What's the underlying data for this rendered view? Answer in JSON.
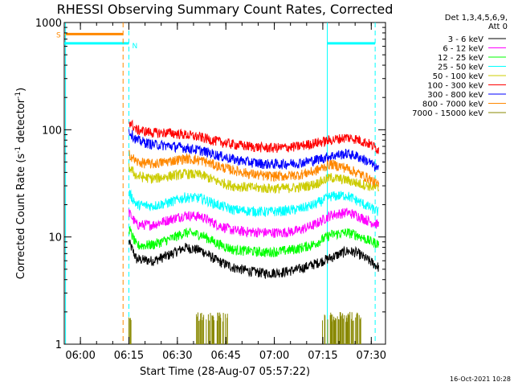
{
  "chart_data": {
    "type": "line",
    "title": "RHESSI Observing Summary Count Rates, Corrected",
    "xlabel": "Start Time (28-Aug-07 05:57:22)",
    "ylabel": "Corrected Count Rate (s",
    "ylabel_sup1": "-1",
    "ylabel_mid": " detector",
    "ylabel_sup2": "-1",
    "ylabel_end": ")",
    "y_scale": "log",
    "ylim": [
      1,
      1000
    ],
    "x_range_minutes": [
      -2.4,
      97.0
    ],
    "x_ticks": [
      {
        "label": "06:00",
        "minutes": 2.6
      },
      {
        "label": "06:15",
        "minutes": 17.6
      },
      {
        "label": "06:30",
        "minutes": 32.6
      },
      {
        "label": "06:45",
        "minutes": 47.6
      },
      {
        "label": "07:00",
        "minutes": 62.6
      },
      {
        "label": "07:15",
        "minutes": 77.6
      },
      {
        "label": "07:30",
        "minutes": 92.6
      }
    ],
    "y_ticks": [
      {
        "label": "1",
        "value": 1
      },
      {
        "label": "10",
        "value": 10
      },
      {
        "label": "100",
        "value": 100
      },
      {
        "label": "1000",
        "value": 1000
      }
    ],
    "legend_header": [
      "Det 1,3,4,5,6,9,",
      "Att 0"
    ],
    "legend_placement": "right",
    "series": [
      {
        "name": "3 - 6 keV",
        "color": "#000000",
        "points": [
          [
            17.6,
            9.0
          ],
          [
            20,
            6.2
          ],
          [
            25,
            6.0
          ],
          [
            30,
            6.8
          ],
          [
            35,
            8.0
          ],
          [
            40,
            7.5
          ],
          [
            45,
            6.0
          ],
          [
            50,
            5.2
          ],
          [
            55,
            4.8
          ],
          [
            60,
            4.6
          ],
          [
            65,
            4.7
          ],
          [
            70,
            5.0
          ],
          [
            75,
            5.6
          ],
          [
            80,
            6.4
          ],
          [
            85,
            7.4
          ],
          [
            88,
            7.2
          ],
          [
            92,
            6.0
          ],
          [
            95,
            5.2
          ]
        ]
      },
      {
        "name": "6 - 12 keV",
        "color": "#ff00ff",
        "points": [
          [
            17.6,
            17
          ],
          [
            20,
            13
          ],
          [
            25,
            13
          ],
          [
            30,
            14.5
          ],
          [
            35,
            16
          ],
          [
            40,
            15.5
          ],
          [
            45,
            13
          ],
          [
            50,
            11.5
          ],
          [
            55,
            11.2
          ],
          [
            60,
            11
          ],
          [
            65,
            11
          ],
          [
            70,
            11.5
          ],
          [
            75,
            13
          ],
          [
            80,
            16
          ],
          [
            85,
            17
          ],
          [
            88,
            16
          ],
          [
            92,
            14
          ],
          [
            95,
            13
          ]
        ]
      },
      {
        "name": "12 - 25 keV",
        "color": "#00ff00",
        "points": [
          [
            17.6,
            12
          ],
          [
            20,
            8.3
          ],
          [
            25,
            8.5
          ],
          [
            30,
            9.5
          ],
          [
            35,
            11
          ],
          [
            40,
            10.5
          ],
          [
            45,
            8.7
          ],
          [
            50,
            7.6
          ],
          [
            55,
            7.4
          ],
          [
            60,
            7.2
          ],
          [
            65,
            7.4
          ],
          [
            70,
            7.8
          ],
          [
            75,
            8.6
          ],
          [
            80,
            10.5
          ],
          [
            85,
            11
          ],
          [
            88,
            10.5
          ],
          [
            92,
            9.2
          ],
          [
            95,
            8.6
          ]
        ]
      },
      {
        "name": "25 - 50 keV",
        "color": "#00ffff",
        "points": [
          [
            17.6,
            26
          ],
          [
            20,
            20
          ],
          [
            25,
            19.5
          ],
          [
            30,
            21
          ],
          [
            35,
            23.5
          ],
          [
            40,
            23
          ],
          [
            45,
            20
          ],
          [
            50,
            18
          ],
          [
            55,
            17.5
          ],
          [
            60,
            17.2
          ],
          [
            65,
            17.5
          ],
          [
            70,
            18.2
          ],
          [
            75,
            20
          ],
          [
            80,
            24
          ],
          [
            85,
            24.5
          ],
          [
            88,
            22
          ],
          [
            92,
            19
          ],
          [
            95,
            17
          ]
        ]
      },
      {
        "name": "50 - 100 keV",
        "color": "#cccc00",
        "points": [
          [
            17.6,
            45
          ],
          [
            20,
            37
          ],
          [
            25,
            35
          ],
          [
            30,
            37
          ],
          [
            35,
            39
          ],
          [
            40,
            38
          ],
          [
            45,
            33
          ],
          [
            50,
            30
          ],
          [
            55,
            29
          ],
          [
            60,
            28.5
          ],
          [
            65,
            28.5
          ],
          [
            70,
            29
          ],
          [
            75,
            31
          ],
          [
            80,
            36
          ],
          [
            85,
            34
          ],
          [
            88,
            32
          ],
          [
            92,
            30
          ],
          [
            95,
            28
          ]
        ]
      },
      {
        "name": "100 - 300 keV",
        "color": "#ff0000",
        "points": [
          [
            17.6,
            120
          ],
          [
            20,
            100
          ],
          [
            25,
            94
          ],
          [
            30,
            94
          ],
          [
            35,
            90
          ],
          [
            40,
            85
          ],
          [
            45,
            78
          ],
          [
            50,
            73
          ],
          [
            55,
            70
          ],
          [
            60,
            68
          ],
          [
            65,
            68
          ],
          [
            70,
            70
          ],
          [
            75,
            75
          ],
          [
            80,
            80
          ],
          [
            85,
            85
          ],
          [
            88,
            82
          ],
          [
            92,
            74
          ],
          [
            95,
            65
          ]
        ]
      },
      {
        "name": "300 - 800 keV",
        "color": "#0000ff",
        "points": [
          [
            17.6,
            98
          ],
          [
            20,
            80
          ],
          [
            25,
            73
          ],
          [
            30,
            71
          ],
          [
            35,
            68
          ],
          [
            40,
            64
          ],
          [
            45,
            58
          ],
          [
            50,
            53
          ],
          [
            55,
            50
          ],
          [
            60,
            48
          ],
          [
            65,
            48
          ],
          [
            70,
            49
          ],
          [
            75,
            52
          ],
          [
            80,
            57
          ],
          [
            85,
            60
          ],
          [
            88,
            57
          ],
          [
            92,
            50
          ],
          [
            95,
            42
          ]
        ]
      },
      {
        "name": "800 - 7000 keV",
        "color": "#ff8800",
        "points": [
          [
            17.6,
            60
          ],
          [
            20,
            50
          ],
          [
            25,
            48
          ],
          [
            30,
            51
          ],
          [
            35,
            54
          ],
          [
            40,
            52
          ],
          [
            45,
            46
          ],
          [
            50,
            42
          ],
          [
            55,
            39
          ],
          [
            60,
            37
          ],
          [
            65,
            37
          ],
          [
            70,
            38
          ],
          [
            75,
            41
          ],
          [
            80,
            48
          ],
          [
            85,
            44
          ],
          [
            88,
            40
          ],
          [
            92,
            35
          ],
          [
            95,
            30
          ]
        ]
      },
      {
        "name": "7000 - 15000 keV",
        "color": "#888800",
        "points": [
          [
            17.6,
            1
          ],
          [
            95,
            1
          ]
        ]
      }
    ],
    "flag_lines": [
      {
        "label": "S",
        "color": "#ff8800",
        "value": 780,
        "x_start": -2.4,
        "x_end": 15.8
      },
      {
        "label": "N",
        "color": "#00ffff",
        "value": 640,
        "x_start": -2.4,
        "x_end": 17.6
      },
      {
        "label": "",
        "color": "#00ffff",
        "value": 640,
        "x_start": 79.0,
        "x_end": 93.8
      }
    ],
    "vertical_markers": [
      {
        "minutes": -2.0,
        "color": "#00ffff",
        "style": "solid"
      },
      {
        "minutes": 15.8,
        "color": "#ff8800",
        "style": "dashed"
      },
      {
        "minutes": 17.6,
        "color": "#00ffff",
        "style": "dashed"
      },
      {
        "minutes": 79.0,
        "color": "#00ffff",
        "style": "solid"
      },
      {
        "minutes": 93.8,
        "color": "#00ffff",
        "style": "dashed"
      }
    ]
  },
  "footer": {
    "timestamp": "16-Oct-2021 10:28"
  }
}
